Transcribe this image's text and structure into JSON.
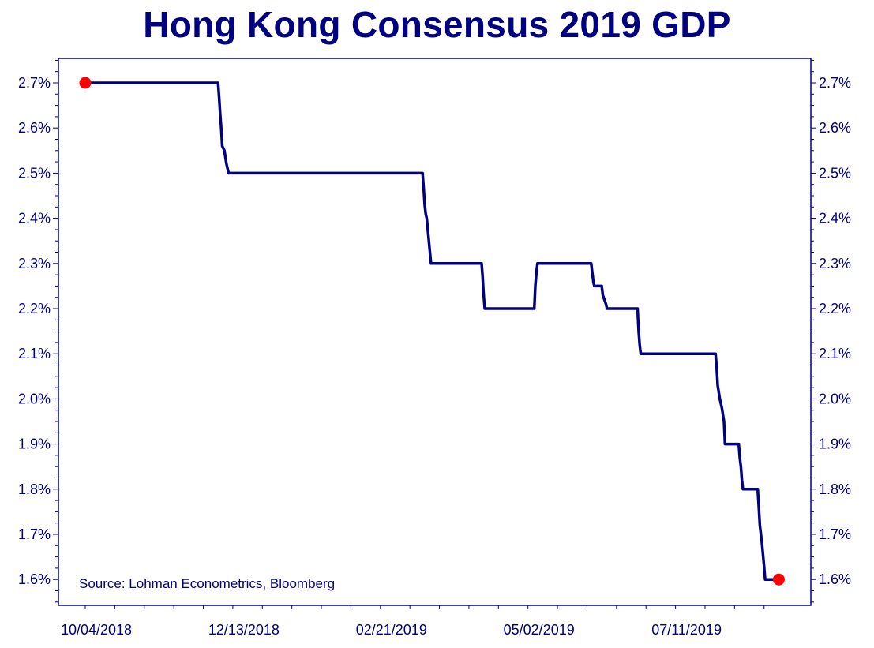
{
  "chart_data": {
    "type": "line",
    "title": "Hong Kong Consensus 2019 GDP",
    "xlabel": "",
    "ylabel": "",
    "ylim": [
      1.55,
      2.75
    ],
    "y_ticks": [
      1.6,
      1.7,
      1.8,
      1.9,
      2.0,
      2.1,
      2.2,
      2.3,
      2.4,
      2.5,
      2.6,
      2.7
    ],
    "y_tick_labels": [
      "1.6%",
      "1.7%",
      "1.8%",
      "1.9%",
      "2.0%",
      "2.1%",
      "2.2%",
      "2.3%",
      "2.4%",
      "2.5%",
      "2.6%",
      "2.7%"
    ],
    "x_range_days": [
      0,
      326
    ],
    "x_ticks": [
      0,
      70,
      140,
      210,
      280
    ],
    "x_tick_labels": [
      "10/04/2018",
      "12/13/2018",
      "02/21/2019",
      "05/02/2019",
      "07/11/2019"
    ],
    "series": [
      {
        "name": "Hong Kong Consensus 2019 GDP",
        "color": "#000080",
        "x_days": [
          0,
          63,
          63.5,
          64,
          64.5,
          65,
          66,
          67,
          68,
          160,
          160.5,
          161,
          161.5,
          162,
          163,
          164,
          188,
          188.5,
          189,
          189.5,
          213,
          213.5,
          214,
          214.5,
          240,
          240.5,
          241,
          241.5,
          245,
          245.5,
          247,
          247.5,
          262,
          262.5,
          263,
          263.5,
          299,
          299.5,
          300,
          301,
          302,
          303,
          303.5,
          310,
          310.5,
          311,
          311.5,
          312,
          319,
          319.5,
          320,
          321,
          322,
          322.5,
          329
        ],
        "values": [
          2.7,
          2.7,
          2.67,
          2.63,
          2.6,
          2.56,
          2.55,
          2.52,
          2.5,
          2.5,
          2.47,
          2.43,
          2.41,
          2.4,
          2.35,
          2.3,
          2.3,
          2.27,
          2.23,
          2.2,
          2.2,
          2.25,
          2.28,
          2.3,
          2.3,
          2.28,
          2.26,
          2.25,
          2.25,
          2.23,
          2.21,
          2.2,
          2.2,
          2.15,
          2.12,
          2.1,
          2.1,
          2.07,
          2.03,
          2.0,
          1.98,
          1.95,
          1.9,
          1.9,
          1.87,
          1.85,
          1.82,
          1.8,
          1.8,
          1.76,
          1.72,
          1.68,
          1.63,
          1.6,
          1.6
        ]
      }
    ],
    "markers": [
      {
        "x_day": 0,
        "value": 2.7,
        "color": "#ff0000"
      },
      {
        "x_day": 329,
        "value": 1.6,
        "color": "#ff0000"
      }
    ],
    "annotation": "Source: Lohman Econometrics, Bloomberg",
    "grid": false,
    "legend": "none"
  }
}
